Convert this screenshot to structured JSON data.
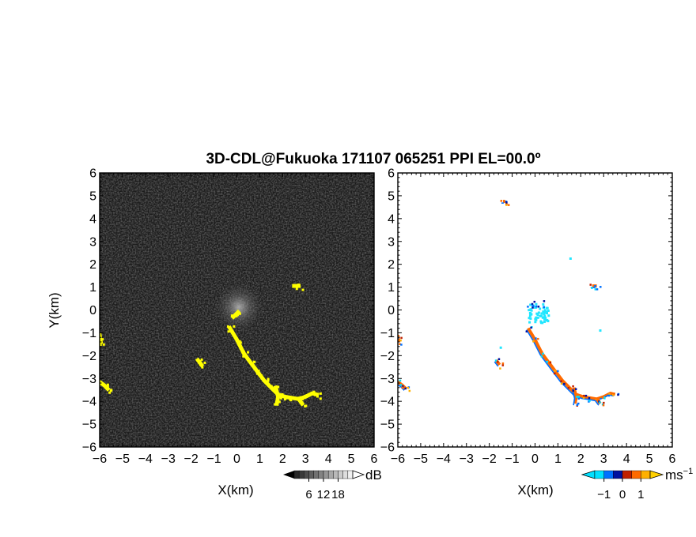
{
  "chart_data": {
    "type": "heatmap",
    "title": "3D-CDL@Fukuoka 171107 065251 PPI EL=00.0º",
    "panels": [
      {
        "name": "reflectivity",
        "xlabel": "X(km)",
        "ylabel": "Y(km)",
        "xlim": [
          -6,
          6
        ],
        "ylim": [
          -6,
          6
        ],
        "xticks": [
          "-6",
          "-5",
          "-4",
          "-3",
          "-2",
          "-1",
          "0",
          "1",
          "2",
          "3",
          "4",
          "5",
          "6"
        ],
        "yticks": [
          "-6",
          "-5",
          "-4",
          "-3",
          "-2",
          "-1",
          "0",
          "1",
          "2",
          "3",
          "4",
          "5",
          "6"
        ],
        "background": "#1c1c1c",
        "echo_color": "#ffff00",
        "colorbar": {
          "unit": "dB",
          "ticks": [
            "6",
            "12",
            "18"
          ],
          "range": [
            0,
            24
          ]
        },
        "echo_traces": [
          [
            [
              -0.3,
              -0.8
            ],
            [
              0.0,
              -1.3
            ],
            [
              0.3,
              -1.9
            ],
            [
              0.6,
              -2.3
            ],
            [
              0.9,
              -2.7
            ],
            [
              1.2,
              -3.1
            ],
            [
              1.5,
              -3.4
            ],
            [
              1.8,
              -3.7
            ],
            [
              2.1,
              -3.8
            ],
            [
              2.4,
              -3.85
            ],
            [
              2.7,
              -3.9
            ],
            [
              3.0,
              -3.8
            ],
            [
              3.3,
              -3.65
            ],
            [
              3.5,
              -3.7
            ]
          ],
          [
            [
              1.7,
              -3.4
            ],
            [
              1.8,
              -3.8
            ],
            [
              1.75,
              -4.1
            ]
          ],
          [
            [
              2.7,
              -3.9
            ],
            [
              2.85,
              -4.1
            ]
          ],
          [
            [
              -6.0,
              -1.1
            ],
            [
              -5.95,
              -1.4
            ]
          ],
          [
            [
              -6.0,
              -3.15
            ],
            [
              -5.8,
              -3.3
            ],
            [
              -5.65,
              -3.45
            ]
          ],
          [
            [
              -1.7,
              -2.2
            ],
            [
              -1.55,
              -2.4
            ]
          ],
          [
            [
              0.05,
              -0.1
            ],
            [
              -0.15,
              -0.3
            ]
          ],
          [
            [
              2.5,
              1.05
            ],
            [
              2.7,
              1.05
            ]
          ]
        ]
      },
      {
        "name": "doppler-velocity",
        "xlabel": "X(km)",
        "xlim": [
          -6,
          6
        ],
        "ylim": [
          -6,
          6
        ],
        "xticks": [
          "-6",
          "-5",
          "-4",
          "-3",
          "-2",
          "-1",
          "0",
          "1",
          "2",
          "3",
          "4",
          "5",
          "6"
        ],
        "yticks": [
          "-6",
          "-5",
          "-4",
          "-3",
          "-2",
          "-1",
          "0",
          "1",
          "2",
          "3",
          "4",
          "5",
          "6"
        ],
        "background": "#ffffff",
        "colorbar": {
          "unit": "ms",
          "unit_exp": "−1",
          "ticks": [
            "−1",
            "0",
            "1"
          ],
          "range": [
            -1.5,
            1.5
          ],
          "colors": [
            "#00e0ff",
            "#0070ff",
            "#0010a0",
            "#c02000",
            "#ff6a00",
            "#ffb000"
          ]
        },
        "echo_traces": [
          [
            [
              -0.3,
              -0.8
            ],
            [
              0.0,
              -1.3
            ],
            [
              0.3,
              -1.9
            ],
            [
              0.6,
              -2.3
            ],
            [
              0.9,
              -2.7
            ],
            [
              1.2,
              -3.1
            ],
            [
              1.5,
              -3.4
            ],
            [
              1.8,
              -3.7
            ],
            [
              2.1,
              -3.8
            ],
            [
              2.4,
              -3.85
            ],
            [
              2.7,
              -3.9
            ],
            [
              3.0,
              -3.8
            ],
            [
              3.3,
              -3.65
            ],
            [
              3.5,
              -3.7
            ]
          ],
          [
            [
              1.7,
              -3.4
            ],
            [
              1.8,
              -3.8
            ],
            [
              1.75,
              -4.1
            ]
          ],
          [
            [
              2.7,
              -3.9
            ],
            [
              2.85,
              -4.1
            ]
          ],
          [
            [
              -6.0,
              -1.1
            ],
            [
              -5.95,
              -1.4
            ]
          ],
          [
            [
              -6.0,
              -3.15
            ],
            [
              -5.8,
              -3.3
            ],
            [
              -5.65,
              -3.45
            ]
          ],
          [
            [
              -1.7,
              -2.2
            ],
            [
              -1.55,
              -2.4
            ]
          ],
          [
            [
              2.5,
              1.05
            ],
            [
              2.7,
              1.05
            ]
          ],
          [
            [
              -1.4,
              4.75
            ],
            [
              -1.3,
              4.75
            ]
          ]
        ],
        "cyan_patch": {
          "center": [
            0.1,
            -0.1
          ],
          "color": "#22e6ff"
        },
        "cyan_specks": [
          [
            1.5,
            2.3
          ],
          [
            2.8,
            -0.85
          ],
          [
            -1.55,
            -1.6
          ]
        ]
      }
    ]
  }
}
